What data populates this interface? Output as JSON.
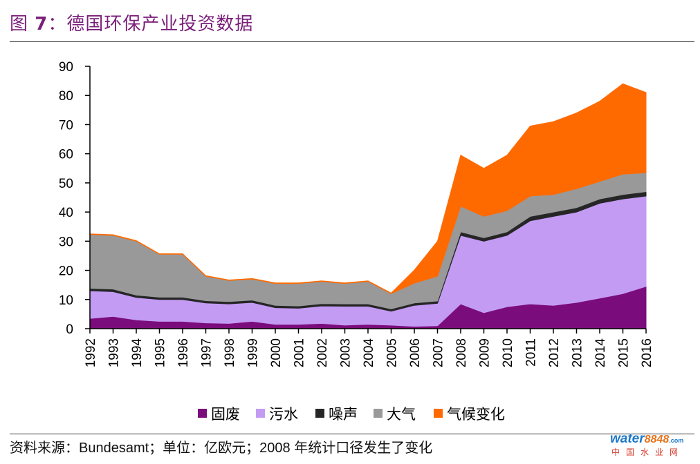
{
  "header": {
    "prefix": "图",
    "number": "7",
    "title": "：德国环保产业投资数据"
  },
  "source_note": "资料来源：Bundesamt；单位：亿欧元；2008 年统计口径发生了变化",
  "watermark": {
    "brand_a": "water",
    "brand_b": "8848",
    "brand_c": ".com",
    "sub": "中国水业网"
  },
  "colors": {
    "guofei": "#7b0c7b",
    "wushui": "#c39bf3",
    "zaosheng": "#262626",
    "daqi": "#999999",
    "qihou": "#ff6a00"
  },
  "chart_data": {
    "type": "area",
    "stacked": true,
    "x": [
      1992,
      1993,
      1994,
      1995,
      1996,
      1997,
      1998,
      1999,
      2000,
      2001,
      2002,
      2003,
      2004,
      2005,
      2006,
      2007,
      2008,
      2009,
      2010,
      2011,
      2012,
      2013,
      2014,
      2015,
      2016
    ],
    "xlabels": [
      "1992",
      "1993",
      "1994",
      "1995",
      "1996",
      "1997",
      "1998",
      "1999",
      "2000",
      "2001",
      "2002",
      "2003",
      "2004",
      "2005",
      "2006",
      "2007",
      "2008",
      "2009",
      "2010",
      "2011",
      "2012",
      "2013",
      "2014",
      "2015",
      "2016"
    ],
    "yticks": [
      "0",
      "10",
      "20",
      "30",
      "40",
      "50",
      "60",
      "70",
      "80",
      "90"
    ],
    "ylim": [
      0,
      90
    ],
    "legend_position": "bottom",
    "series": [
      {
        "name": "固废",
        "color_key": "guofei",
        "values": [
          3.5,
          4.2,
          3.0,
          2.5,
          2.5,
          2.0,
          1.8,
          2.5,
          1.5,
          1.5,
          1.8,
          1.2,
          1.5,
          1.2,
          0.8,
          1.0,
          8.5,
          5.5,
          7.5,
          8.5,
          8.0,
          9.0,
          10.5,
          12.0,
          14.5
        ]
      },
      {
        "name": "污水",
        "color_key": "wushui",
        "values": [
          9.5,
          8.5,
          7.7,
          7.5,
          7.5,
          6.8,
          6.7,
          6.5,
          5.7,
          5.5,
          6.0,
          6.5,
          6.2,
          4.8,
          7.2,
          7.7,
          23.5,
          24.5,
          24.5,
          28.5,
          30.5,
          31.0,
          32.5,
          32.5,
          31.0
        ]
      },
      {
        "name": "噪声",
        "color_key": "zaosheng",
        "values": [
          0.8,
          0.9,
          0.8,
          0.8,
          0.8,
          0.8,
          0.8,
          0.8,
          0.8,
          0.8,
          0.8,
          0.8,
          0.8,
          0.8,
          0.8,
          0.8,
          1.2,
          1.2,
          1.2,
          1.5,
          1.5,
          1.5,
          1.5,
          1.5,
          1.5
        ]
      },
      {
        "name": "大气",
        "color_key": "daqi",
        "values": [
          18.5,
          18.4,
          18.5,
          14.7,
          14.7,
          8.4,
          7.2,
          7.2,
          7.5,
          7.7,
          7.6,
          7.0,
          7.7,
          5.2,
          6.8,
          8.5,
          8.8,
          7.3,
          7.3,
          7.0,
          6.0,
          6.5,
          6.0,
          7.0,
          6.5
        ]
      },
      {
        "name": "气候变化",
        "color_key": "qihou",
        "values": [
          0.2,
          0.2,
          0.2,
          0.2,
          0.2,
          0.2,
          0.2,
          0.2,
          0.2,
          0.2,
          0.2,
          0.2,
          0.2,
          0.2,
          4.5,
          12.0,
          17.5,
          16.5,
          19.0,
          24.0,
          25.0,
          26.0,
          27.5,
          31.0,
          27.5
        ]
      }
    ]
  }
}
